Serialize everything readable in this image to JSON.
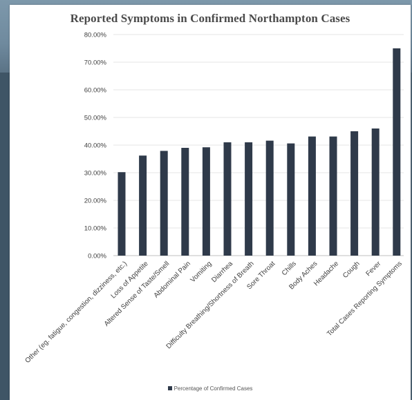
{
  "chart_data": {
    "type": "bar",
    "title": "Reported Symptoms in Confirmed Northampton Cases",
    "xlabel": "",
    "ylabel": "",
    "ylim": [
      0,
      80
    ],
    "yticks": [
      "0.00%",
      "10.00%",
      "20.00%",
      "30.00%",
      "40.00%",
      "50.00%",
      "60.00%",
      "70.00%",
      "80.00%"
    ],
    "grid": true,
    "legend_position": "bottom",
    "bar_color": "#2f3a4a",
    "categories": [
      "Other (eg. fatigue, congestion, dizziness, etc.)",
      "Loss of Appetite",
      "Altered Sense of Taste/Smell",
      "Abdominal Pain",
      "Vomiting",
      "Diarrhea",
      "Difficulty Breathing/Shortness of Breath",
      "Sore Throat",
      "Chills",
      "Body Aches",
      "Headache",
      "Cough",
      "Fever",
      "Total Cases Reporting Symptoms"
    ],
    "series": [
      {
        "name": "Percentage of Confirmed Cases",
        "values": [
          30.2,
          36.2,
          37.9,
          39.0,
          39.2,
          41.0,
          41.0,
          41.6,
          40.6,
          43.1,
          43.1,
          45.0,
          46.0,
          75.0
        ]
      }
    ]
  }
}
